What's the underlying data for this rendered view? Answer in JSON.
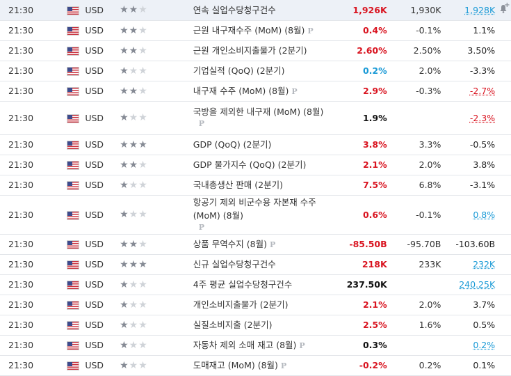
{
  "rows": [
    {
      "time": "21:30",
      "currency": "USD",
      "importance": 2,
      "event": "연속 실업수당청구건수",
      "preliminary": false,
      "actual": "1,926K",
      "actual_color": "red",
      "forecast": "1,930K",
      "previous": "1,928K",
      "previous_style": "rev-blue",
      "highlight": true,
      "alert": true
    },
    {
      "time": "21:30",
      "currency": "USD",
      "importance": 2,
      "event": "근원 내구재수주 (MoM) (8월)",
      "preliminary": true,
      "actual": "0.4%",
      "actual_color": "red",
      "forecast": "-0.1%",
      "previous": "1.1%",
      "previous_style": "plain"
    },
    {
      "time": "21:30",
      "currency": "USD",
      "importance": 2,
      "event": "근원 개인소비지출물가 (2분기)",
      "preliminary": false,
      "actual": "2.60%",
      "actual_color": "red",
      "forecast": "2.50%",
      "previous": "3.50%",
      "previous_style": "plain"
    },
    {
      "time": "21:30",
      "currency": "USD",
      "importance": 1,
      "event": "기업실적 (QoQ) (2분기)",
      "preliminary": false,
      "actual": "0.2%",
      "actual_color": "blue",
      "forecast": "2.0%",
      "previous": "-3.3%",
      "previous_style": "plain"
    },
    {
      "time": "21:30",
      "currency": "USD",
      "importance": 2,
      "event": "내구재 수주 (MoM) (8월)",
      "preliminary": true,
      "actual": "2.9%",
      "actual_color": "red",
      "forecast": "-0.3%",
      "previous": "-2.7%",
      "previous_style": "rev-red"
    },
    {
      "time": "21:30",
      "currency": "USD",
      "importance": 1,
      "event": "국방을 제외한 내구재 (MoM) (8월)",
      "preliminary": true,
      "actual": "1.9%",
      "actual_color": "black",
      "forecast": "",
      "previous": "-2.3%",
      "previous_style": "rev-red",
      "tall": true
    },
    {
      "time": "21:30",
      "currency": "USD",
      "importance": 3,
      "event": "GDP (QoQ) (2분기)",
      "preliminary": false,
      "actual": "3.8%",
      "actual_color": "red",
      "forecast": "3.3%",
      "previous": "-0.5%",
      "previous_style": "plain"
    },
    {
      "time": "21:30",
      "currency": "USD",
      "importance": 2,
      "event": "GDP 물가지수 (QoQ) (2분기)",
      "preliminary": false,
      "actual": "2.1%",
      "actual_color": "red",
      "forecast": "2.0%",
      "previous": "3.8%",
      "previous_style": "plain"
    },
    {
      "time": "21:30",
      "currency": "USD",
      "importance": 1,
      "event": "국내총생산 판매 (2분기)",
      "preliminary": false,
      "actual": "7.5%",
      "actual_color": "red",
      "forecast": "6.8%",
      "previous": "-3.1%",
      "previous_style": "plain"
    },
    {
      "time": "21:30",
      "currency": "USD",
      "importance": 1,
      "event": "항공기 제외 비군수용 자본재 수주 (MoM) (8월)",
      "preliminary": true,
      "actual": "0.6%",
      "actual_color": "red",
      "forecast": "-0.1%",
      "previous": "0.8%",
      "previous_style": "rev-blue",
      "tall": true
    },
    {
      "time": "21:30",
      "currency": "USD",
      "importance": 2,
      "event": "상품 무역수지 (8월)",
      "preliminary": true,
      "actual": "-85.50B",
      "actual_color": "red",
      "forecast": "-95.70B",
      "previous": "-103.60B",
      "previous_style": "plain"
    },
    {
      "time": "21:30",
      "currency": "USD",
      "importance": 3,
      "event": "신규 실업수당청구건수",
      "preliminary": false,
      "actual": "218K",
      "actual_color": "red",
      "forecast": "233K",
      "previous": "232K",
      "previous_style": "rev-blue"
    },
    {
      "time": "21:30",
      "currency": "USD",
      "importance": 1,
      "event": "4주 평균 실업수당청구건수",
      "preliminary": false,
      "actual": "237.50K",
      "actual_color": "black",
      "forecast": "",
      "previous": "240.25K",
      "previous_style": "rev-blue"
    },
    {
      "time": "21:30",
      "currency": "USD",
      "importance": 1,
      "event": "개인소비지출물가 (2분기)",
      "preliminary": false,
      "actual": "2.1%",
      "actual_color": "red",
      "forecast": "2.0%",
      "previous": "3.7%",
      "previous_style": "plain"
    },
    {
      "time": "21:30",
      "currency": "USD",
      "importance": 1,
      "event": "실질소비지출 (2분기)",
      "preliminary": false,
      "actual": "2.5%",
      "actual_color": "red",
      "forecast": "1.6%",
      "previous": "0.5%",
      "previous_style": "plain"
    },
    {
      "time": "21:30",
      "currency": "USD",
      "importance": 1,
      "event": "자동차 제외 소매 재고 (8월)",
      "preliminary": true,
      "actual": "0.3%",
      "actual_color": "black",
      "forecast": "",
      "previous": "0.2%",
      "previous_style": "rev-blue"
    },
    {
      "time": "21:30",
      "currency": "USD",
      "importance": 1,
      "event": "도매재고 (MoM) (8월)",
      "preliminary": true,
      "actual": "-0.2%",
      "actual_color": "red",
      "forecast": "0.2%",
      "previous": "0.1%",
      "previous_style": "plain"
    }
  ],
  "preliminary_badge": "P",
  "star_glyph": "★",
  "alert_icon": "bell-plus-icon",
  "colors": {
    "red": "#d91420",
    "blue": "#1a9ad6",
    "highlight": "#edf1f7",
    "star_on": "#858a94",
    "star_off": "#cfd3d8"
  }
}
